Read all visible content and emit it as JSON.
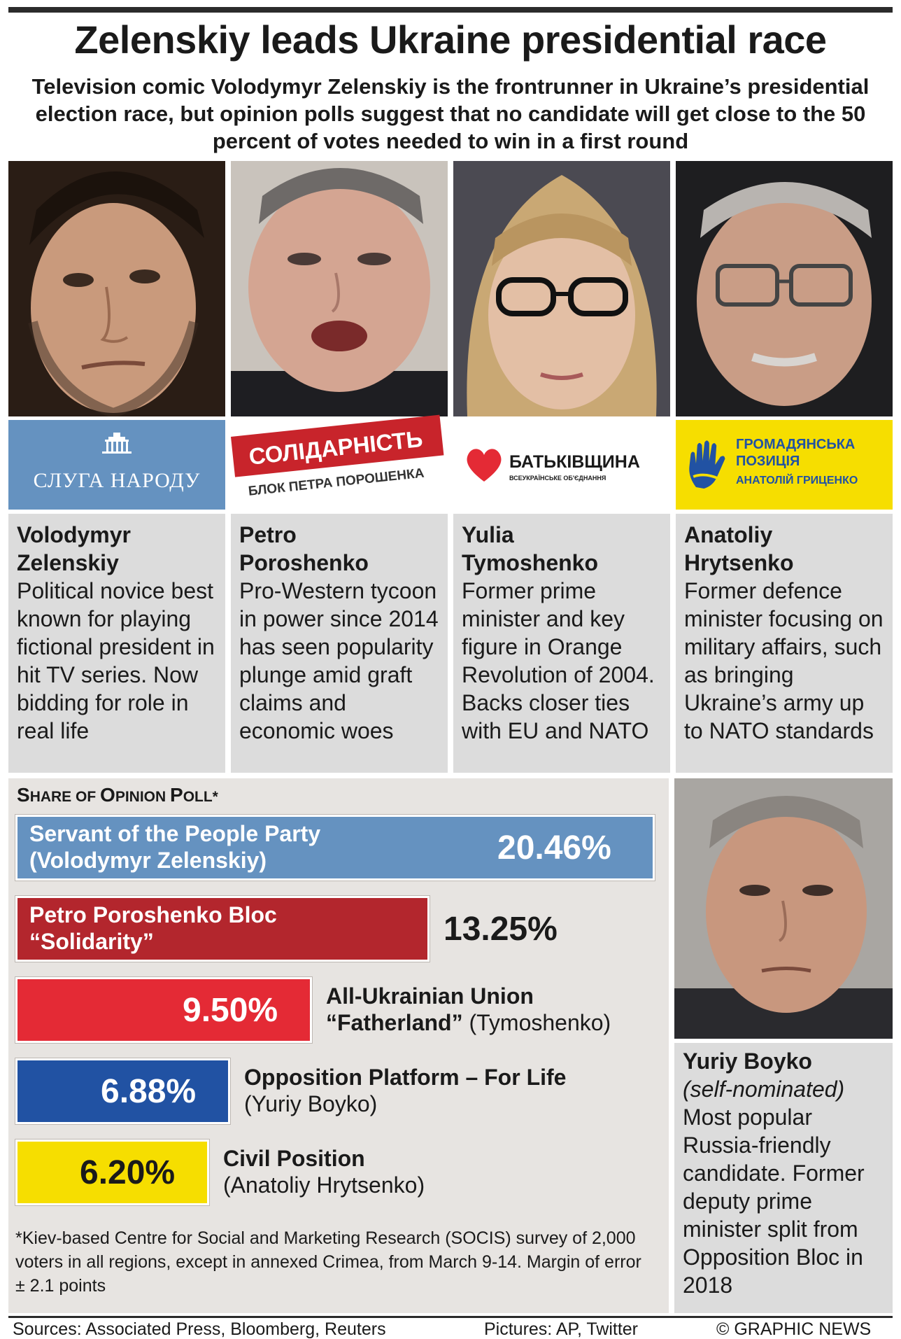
{
  "title": "Zelenskiy leads Ukraine presidential race",
  "subtitle": "Television comic Volodymyr Zelenskiy is the frontrunner in Ukraine’s presidential election race, but opinion polls suggest that no candidate will get close to the 50 percent of votes needed to win in a first round",
  "candidates": [
    {
      "name_line1": "Volodymyr",
      "name_line2": "Zelenskiy",
      "desc": "Political novice best known for playing fictional president in hit TV series. Now bidding for role in real life",
      "logo_text": "СЛУГА НАРОДУ",
      "logo_color": "#6592c0"
    },
    {
      "name_line1": "Petro",
      "name_line2": "Poroshenko",
      "desc": "Pro-Western tycoon in power since 2014 has seen popularity plunge amid graft claims and economic woes",
      "logo_text": "СОЛІДАРНІСТЬ",
      "logo_subtext": "БЛОК ПЕТРА ПОРОШЕНКА",
      "logo_color": "#c8242b"
    },
    {
      "name_line1": "Yulia",
      "name_line2": "Tymoshenko",
      "desc": "Former prime minister and key figure in Orange Revolution of 2004. Backs closer ties with EU and NATO",
      "logo_text": "БАТЬКІВЩИНА",
      "logo_subtext": "ВСЕУКРАЇНСЬКЕ ОБ'ЄДНАННЯ",
      "logo_color": "#e42a35"
    },
    {
      "name_line1": "Anatoliy",
      "name_line2": "Hrytsenko",
      "desc": "Former defence minister focusing on military affairs, such as bringing Ukraine’s army up to NATO standards",
      "logo_text_line1": "ГРОМАДЯНСЬКА",
      "logo_text_line2": "ПОЗИЦІЯ",
      "logo_subtext": "АНАТОЛІЙ ГРИЦЕНКО",
      "logo_color": "#f6de00"
    }
  ],
  "chart_data": {
    "type": "bar",
    "orientation": "horizontal",
    "title_first": "S",
    "title_rest": "HARE OF ",
    "title_first2": "O",
    "title_rest2": "PINION ",
    "title_first3": "P",
    "title_rest3": "OLL*",
    "categories": [
      "Servant of the People Party (Volodymyr Zelenskiy)",
      "Petro Poroshenko Bloc “Solidarity”",
      "All-Ukrainian Union “Fatherland” (Tymoshenko)",
      "Opposition Platform – For Life (Yuriy Boyko)",
      "Civil Position (Anatoliy Hrytsenko)"
    ],
    "values": [
      20.46,
      13.25,
      9.5,
      6.88,
      6.2
    ],
    "value_labels": [
      "20.46%",
      "13.25%",
      "9.50%",
      "6.88%",
      "6.20%"
    ],
    "colors": [
      "#6592c0",
      "#b3262d",
      "#e42a35",
      "#2152a3",
      "#f6de00"
    ],
    "label_parts": [
      {
        "line1": "Servant of the People Party",
        "line2": "(Volodymyr Zelenskiy)"
      },
      {
        "line1": "Petro Poroshenko Bloc",
        "line2": "“Solidarity”"
      },
      {
        "line1": "All-Ukrainian Union",
        "line2_bold": "“Fatherland”",
        "line2_rest": " (Tymoshenko)"
      },
      {
        "line1": "Opposition Platform – For Life",
        "line2": "(Yuriy Boyko)"
      },
      {
        "line1": "Civil Position",
        "line2": "(Anatoliy Hrytsenko)"
      }
    ],
    "footnote": "*Kiev-based Centre for Social and Marketing Research (SOCIS) survey of 2,000 voters in all regions, except in annexed Crimea, from March 9-14. Margin of error ± 2.1 points"
  },
  "boyko": {
    "name": "Yuriy Boyko",
    "note": "(self-nominated)",
    "desc": "Most popular Russia-friendly candidate. Former deputy prime minister split from Opposition Bloc in 2018"
  },
  "footer": {
    "sources": "Sources: Associated Press, Bloomberg, Reuters",
    "pictures": "Pictures: AP, Twitter",
    "credit": "© GRAPHIC NEWS"
  }
}
